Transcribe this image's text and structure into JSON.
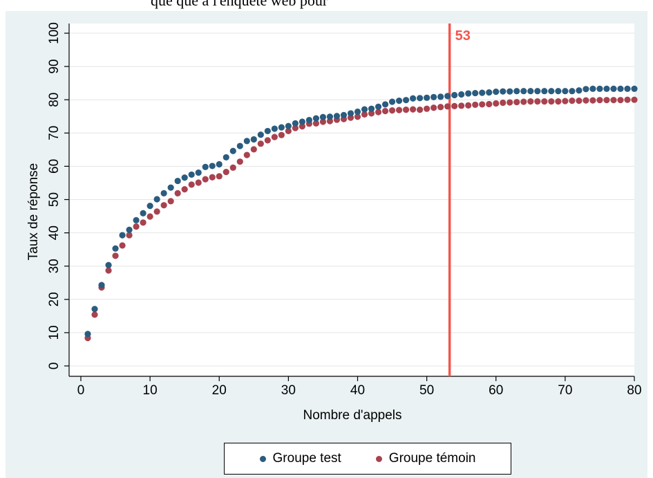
{
  "page": {
    "cut_off_heading": "que que à l'enquête web pour"
  },
  "chart_data": {
    "type": "scatter",
    "title": "",
    "xlabel": "Nombre d'appels",
    "ylabel": "Taux de réponse",
    "xlim": [
      0,
      80
    ],
    "ylim": [
      0,
      100
    ],
    "x_ticks": [
      0,
      10,
      20,
      30,
      40,
      50,
      60,
      70,
      80
    ],
    "y_ticks": [
      0,
      10,
      20,
      30,
      40,
      50,
      60,
      70,
      80,
      90,
      100
    ],
    "grid": true,
    "legend_position": "bottom",
    "colors": {
      "frame_background": "#eaf2f3",
      "grid": "#e4e4e4",
      "reference_line": "#f2564e",
      "reference_label": "#f2564e"
    },
    "reference_line": {
      "x": 53.3,
      "label": "53"
    },
    "x": [
      1,
      2,
      3,
      4,
      5,
      6,
      7,
      8,
      9,
      10,
      11,
      12,
      13,
      14,
      15,
      16,
      17,
      18,
      19,
      20,
      21,
      22,
      23,
      24,
      25,
      26,
      27,
      28,
      29,
      30,
      31,
      32,
      33,
      34,
      35,
      36,
      37,
      38,
      39,
      40,
      41,
      42,
      43,
      44,
      45,
      46,
      47,
      48,
      49,
      50,
      51,
      52,
      53,
      54,
      55,
      56,
      57,
      58,
      59,
      60,
      61,
      62,
      63,
      64,
      65,
      66,
      67,
      68,
      69,
      70,
      71,
      72,
      73,
      74,
      75,
      76,
      77,
      78,
      79,
      80
    ],
    "series": [
      {
        "name": "Groupe test",
        "color": "#2a5c7f",
        "values": [
          9.6,
          17.1,
          24.3,
          30.3,
          35.3,
          39.3,
          40.9,
          43.8,
          45.9,
          48.1,
          50.1,
          51.9,
          53.6,
          55.6,
          56.6,
          57.5,
          58.1,
          59.8,
          60.1,
          60.6,
          62.7,
          64.6,
          66.1,
          67.6,
          68.1,
          69.5,
          70.6,
          71.3,
          71.7,
          72.1,
          72.9,
          73.4,
          73.9,
          74.4,
          74.8,
          74.9,
          75.1,
          75.4,
          75.9,
          76.4,
          77.1,
          77.3,
          77.9,
          78.6,
          79.4,
          79.7,
          79.9,
          80.4,
          80.5,
          80.6,
          80.8,
          80.9,
          81.1,
          81.4,
          81.6,
          81.9,
          82.0,
          82.1,
          82.2,
          82.4,
          82.5,
          82.5,
          82.6,
          82.6,
          82.6,
          82.6,
          82.6,
          82.6,
          82.6,
          82.6,
          82.6,
          82.8,
          83.2,
          83.3,
          83.3,
          83.3,
          83.3,
          83.3,
          83.3,
          83.3
        ]
      },
      {
        "name": "Groupe témoin",
        "color": "#a8424f",
        "values": [
          8.4,
          15.4,
          23.6,
          28.7,
          33.1,
          36.2,
          39.3,
          41.9,
          43.1,
          44.9,
          46.4,
          48.3,
          49.5,
          51.9,
          53.1,
          54.5,
          55.1,
          56.1,
          56.7,
          57.0,
          58.3,
          59.6,
          61.4,
          63.4,
          65.1,
          66.8,
          67.8,
          68.8,
          69.4,
          70.6,
          71.5,
          72.0,
          72.8,
          72.9,
          73.4,
          73.6,
          74.0,
          74.2,
          74.6,
          74.9,
          75.6,
          75.9,
          76.3,
          76.6,
          76.8,
          76.9,
          77.0,
          77.1,
          77.0,
          77.3,
          77.6,
          77.8,
          78.0,
          78.1,
          78.2,
          78.3,
          78.5,
          78.6,
          78.7,
          78.9,
          79.1,
          79.2,
          79.3,
          79.4,
          79.5,
          79.5,
          79.5,
          79.5,
          79.5,
          79.6,
          79.7,
          79.7,
          79.8,
          79.8,
          79.9,
          79.9,
          79.9,
          79.9,
          80.0,
          80.0
        ]
      }
    ]
  }
}
